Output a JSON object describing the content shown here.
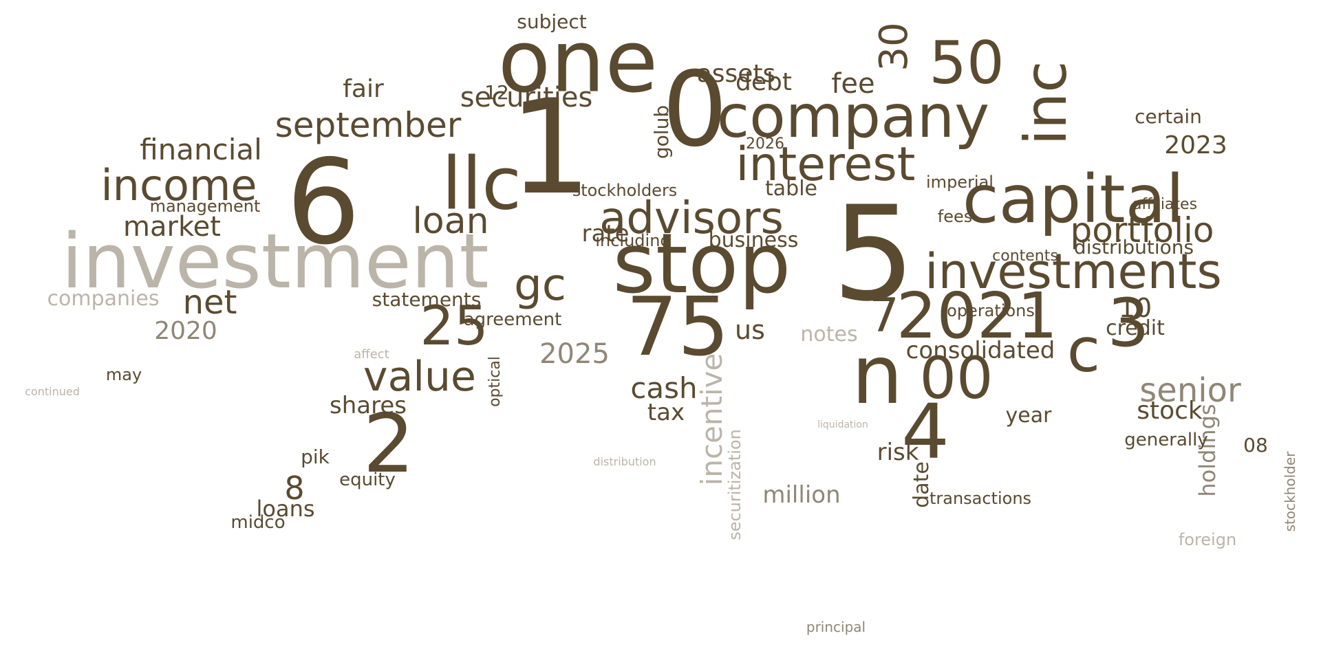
{
  "colors": {
    "dark": "#5a4a30",
    "mid": "#8f8676",
    "light": "#bbb4a9",
    "background": "#ffffff"
  },
  "words": [
    {
      "text": "investment",
      "tone": "light"
    },
    {
      "text": "stop",
      "tone": "dark"
    },
    {
      "text": "one",
      "tone": "dark"
    },
    {
      "text": "1",
      "tone": "dark"
    },
    {
      "text": "0",
      "tone": "dark"
    },
    {
      "text": "5",
      "tone": "dark"
    },
    {
      "text": "6",
      "tone": "dark"
    },
    {
      "text": "llc",
      "tone": "dark"
    },
    {
      "text": "company",
      "tone": "dark"
    },
    {
      "text": "capital",
      "tone": "dark"
    },
    {
      "text": "inc",
      "tone": "dark"
    },
    {
      "text": "interest",
      "tone": "dark"
    },
    {
      "text": "investments",
      "tone": "dark"
    },
    {
      "text": "advisors",
      "tone": "dark"
    },
    {
      "text": "2021",
      "tone": "dark"
    },
    {
      "text": "75",
      "tone": "dark"
    },
    {
      "text": "2",
      "tone": "dark"
    },
    {
      "text": "4",
      "tone": "dark"
    },
    {
      "text": "n",
      "tone": "dark"
    },
    {
      "text": "00",
      "tone": "dark"
    },
    {
      "text": "3",
      "tone": "dark"
    },
    {
      "text": "c",
      "tone": "dark"
    },
    {
      "text": "50",
      "tone": "dark"
    },
    {
      "text": "income",
      "tone": "dark"
    },
    {
      "text": "september",
      "tone": "dark"
    },
    {
      "text": "portfolio",
      "tone": "dark"
    },
    {
      "text": "gc",
      "tone": "dark"
    },
    {
      "text": "loan",
      "tone": "dark"
    },
    {
      "text": "net",
      "tone": "dark"
    },
    {
      "text": "25",
      "tone": "dark"
    },
    {
      "text": "value",
      "tone": "dark"
    },
    {
      "text": "securities",
      "tone": "dark"
    },
    {
      "text": "financial",
      "tone": "dark"
    },
    {
      "text": "market",
      "tone": "dark"
    },
    {
      "text": "senior",
      "tone": "mid"
    },
    {
      "text": "consolidated",
      "tone": "dark"
    },
    {
      "text": "stock",
      "tone": "dark"
    },
    {
      "text": "shares",
      "tone": "dark"
    },
    {
      "text": "cash",
      "tone": "dark"
    },
    {
      "text": "incentive",
      "tone": "light"
    },
    {
      "text": "2025",
      "tone": "mid"
    },
    {
      "text": "2020",
      "tone": "mid"
    },
    {
      "text": "companies",
      "tone": "light"
    },
    {
      "text": "notes",
      "tone": "light"
    },
    {
      "text": "business",
      "tone": "dark"
    },
    {
      "text": "assets",
      "tone": "dark"
    },
    {
      "text": "debt",
      "tone": "dark"
    },
    {
      "text": "fee",
      "tone": "dark"
    },
    {
      "text": "30",
      "tone": "dark"
    },
    {
      "text": "fair",
      "tone": "dark"
    },
    {
      "text": "million",
      "tone": "mid"
    },
    {
      "text": "agreement",
      "tone": "dark"
    },
    {
      "text": "statements",
      "tone": "dark"
    },
    {
      "text": "loans",
      "tone": "dark"
    },
    {
      "text": "holdings",
      "tone": "mid"
    },
    {
      "text": "2023",
      "tone": "dark"
    },
    {
      "text": "distributions",
      "tone": "dark"
    },
    {
      "text": "year",
      "tone": "dark"
    },
    {
      "text": "us",
      "tone": "dark"
    },
    {
      "text": "tax",
      "tone": "dark"
    },
    {
      "text": "rate",
      "tone": "dark"
    },
    {
      "text": "table",
      "tone": "dark"
    },
    {
      "text": "subject",
      "tone": "dark"
    },
    {
      "text": "golub",
      "tone": "dark"
    },
    {
      "text": "2026",
      "tone": "dark"
    },
    {
      "text": "certain",
      "tone": "dark"
    },
    {
      "text": "contents",
      "tone": "dark"
    },
    {
      "text": "credit",
      "tone": "dark"
    },
    {
      "text": "10",
      "tone": "dark"
    },
    {
      "text": "7",
      "tone": "dark"
    },
    {
      "text": "8",
      "tone": "dark"
    },
    {
      "text": "pik",
      "tone": "dark"
    },
    {
      "text": "midco",
      "tone": "dark"
    },
    {
      "text": "equity",
      "tone": "dark"
    },
    {
      "text": "risk",
      "tone": "dark"
    },
    {
      "text": "date",
      "tone": "dark"
    },
    {
      "text": "management",
      "tone": "dark"
    },
    {
      "text": "including",
      "tone": "dark"
    },
    {
      "text": "stockholders",
      "tone": "dark"
    },
    {
      "text": "imperial",
      "tone": "dark"
    },
    {
      "text": "fees",
      "tone": "dark"
    },
    {
      "text": "affiliates",
      "tone": "dark"
    },
    {
      "text": "operations",
      "tone": "dark"
    },
    {
      "text": "optical",
      "tone": "dark"
    },
    {
      "text": "may",
      "tone": "dark"
    },
    {
      "text": "transactions",
      "tone": "dark"
    },
    {
      "text": "generally",
      "tone": "dark"
    },
    {
      "text": "08",
      "tone": "dark"
    },
    {
      "text": "12",
      "tone": "dark"
    },
    {
      "text": "securitization",
      "tone": "light"
    },
    {
      "text": "foreign",
      "tone": "light"
    },
    {
      "text": "stockholder",
      "tone": "mid"
    },
    {
      "text": "principal",
      "tone": "mid"
    },
    {
      "text": "continued",
      "tone": "light"
    },
    {
      "text": "affect",
      "tone": "light"
    },
    {
      "text": "distribution",
      "tone": "light"
    },
    {
      "text": "liquidation",
      "tone": "light"
    }
  ]
}
